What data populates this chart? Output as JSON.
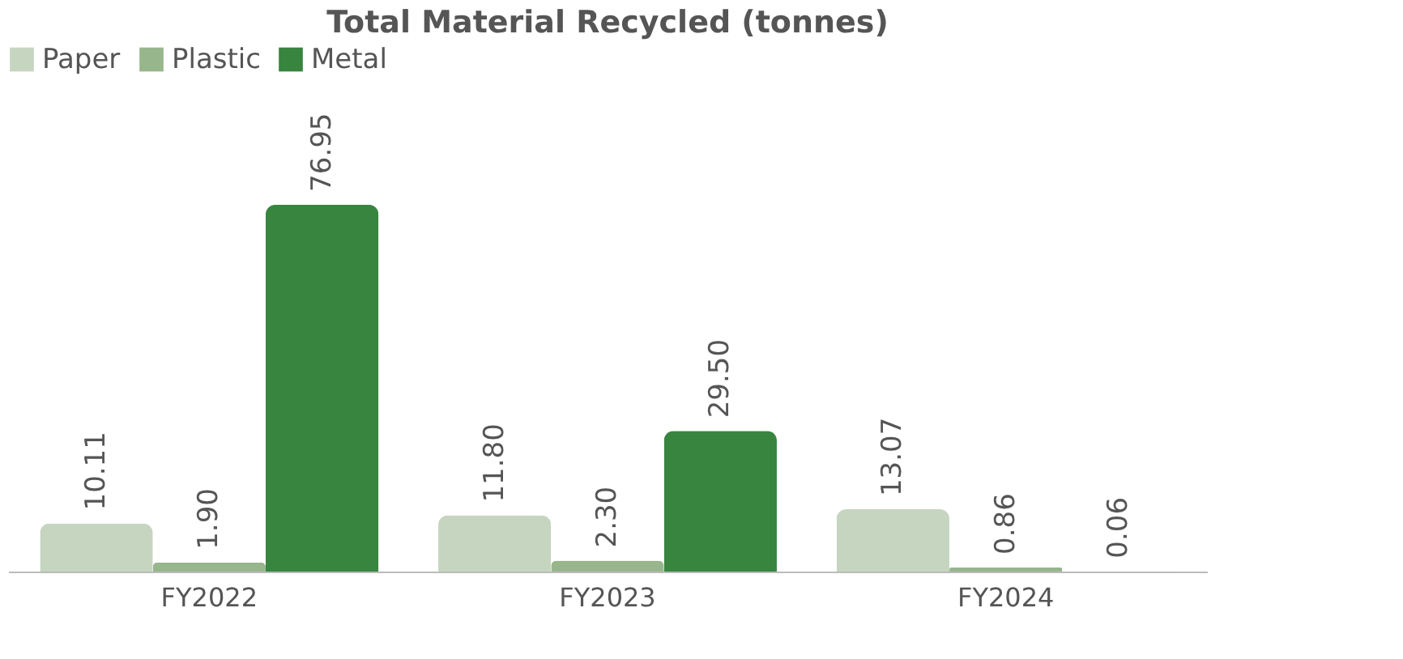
{
  "chart_data": {
    "type": "bar",
    "title": "Total Material Recycled (tonnes)",
    "categories": [
      "FY2022",
      "FY2023",
      "FY2024"
    ],
    "series": [
      {
        "name": "Paper",
        "color": "#c6d5c0",
        "values": [
          10.11,
          11.8,
          13.07
        ],
        "value_labels": [
          "10.11",
          "11.80",
          "13.07"
        ]
      },
      {
        "name": "Plastic",
        "color": "#97b68b",
        "values": [
          1.9,
          2.3,
          0.86
        ],
        "value_labels": [
          "1.90",
          "2.30",
          "0.86"
        ]
      },
      {
        "name": "Metal",
        "color": "#37853f",
        "values": [
          76.95,
          29.5,
          0.06
        ],
        "value_labels": [
          "76.95",
          "29.50",
          "0.06"
        ]
      }
    ],
    "legend": "top",
    "grid": false
  }
}
